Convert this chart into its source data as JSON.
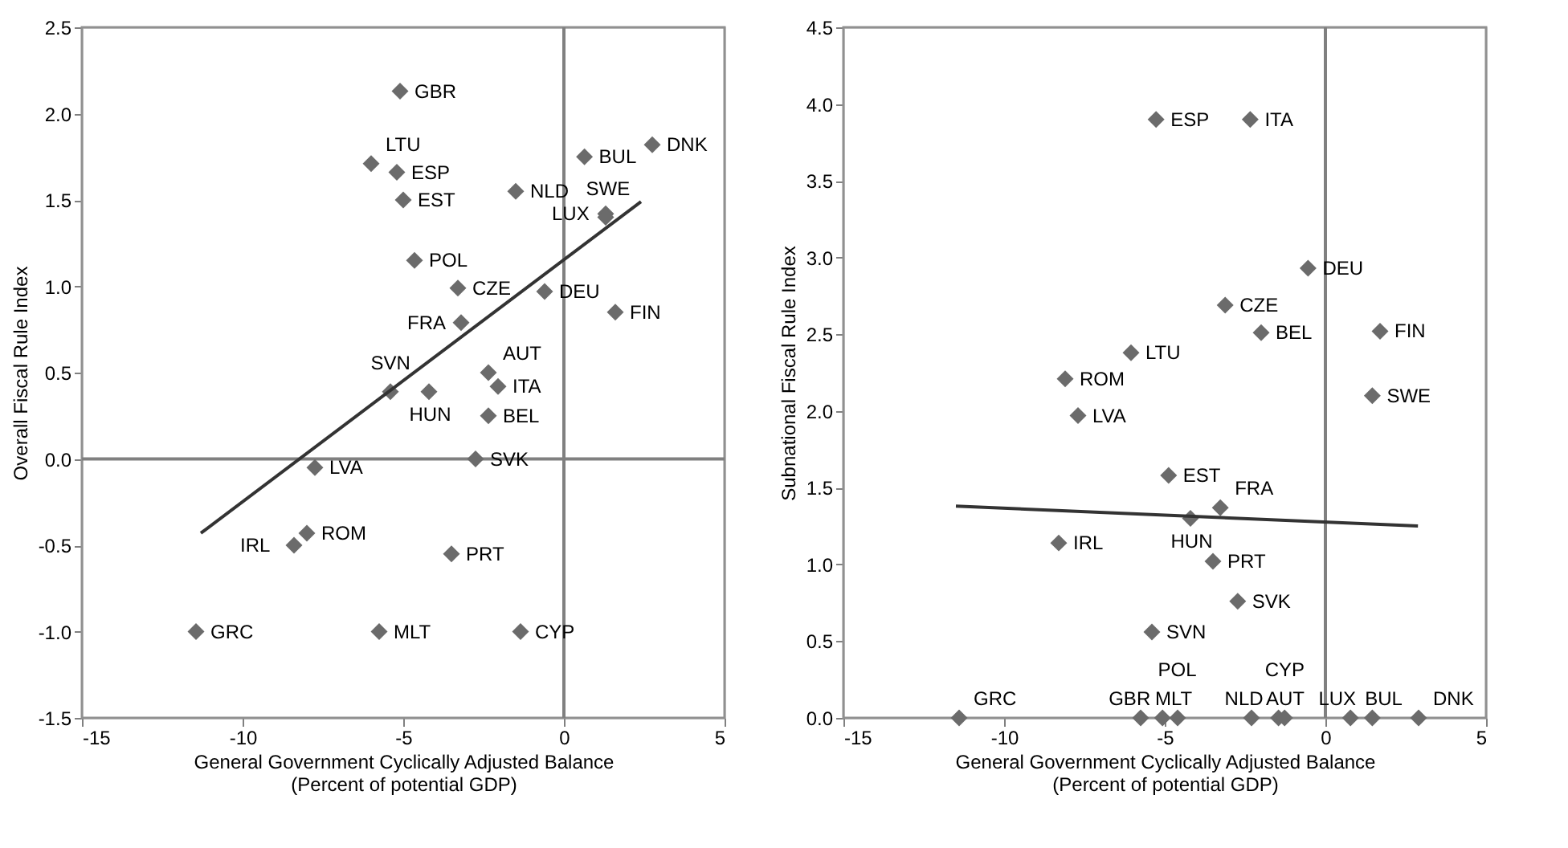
{
  "chart_data": [
    {
      "type": "scatter",
      "xlabel": "General Government Cyclically Adjusted Balance\n(Percent of potential GDP)",
      "ylabel": "Overall Fiscal Rule Index",
      "xlim": [
        -15,
        5
      ],
      "xticks": [
        -15,
        -10,
        -5,
        0,
        5
      ],
      "ylim": [
        -1.5,
        2.5
      ],
      "yticks": [
        {
          "value": -1.5,
          "label": "-1.5"
        },
        {
          "value": -1,
          "label": "-1.0"
        },
        {
          "value": -0.5,
          "label": "-0.5"
        },
        {
          "value": 0,
          "label": "0.0"
        },
        {
          "value": 0.5,
          "label": "0.5"
        },
        {
          "value": 1,
          "label": "1.0"
        },
        {
          "value": 1.5,
          "label": "1.5"
        },
        {
          "value": 2,
          "label": "2.0"
        },
        {
          "value": 2.5,
          "label": "2.5"
        }
      ],
      "grid": false,
      "ref_lines": [
        {
          "axis": "x",
          "value": 0,
          "color": "#808080"
        },
        {
          "axis": "y",
          "value": 0,
          "color": "#808080"
        }
      ],
      "series": [
        {
          "type": "scatter",
          "marker": "diamond",
          "color": "#6b6b6b",
          "x": [
            -5.1,
            -6.0,
            -5.2,
            -5.0,
            -1.5,
            0.64,
            2.75,
            1.3,
            1.3,
            -4.65,
            -3.3,
            -0.6,
            1.6,
            -3.2,
            -5.4,
            -4.2,
            -2.35,
            -2.05,
            -2.35,
            -2.75,
            -7.75,
            -8.0,
            -8.4,
            -3.5,
            -11.45,
            -5.75,
            -1.35
          ],
          "values": [
            2.13,
            1.71,
            1.66,
            1.5,
            1.55,
            1.75,
            1.82,
            1.42,
            1.4,
            1.15,
            0.99,
            0.97,
            0.85,
            0.79,
            0.39,
            0.39,
            0.5,
            0.42,
            0.25,
            0.0,
            -0.05,
            -0.43,
            -0.5,
            -0.55,
            -1.0,
            -1.0,
            -1.0
          ]
        },
        {
          "type": "line",
          "marker": "none",
          "color": "#333333",
          "x": [
            -11.3,
            2.4
          ],
          "values": [
            -0.43,
            1.49
          ]
        }
      ],
      "annotations": [
        {
          "text": "GBR",
          "x": -5.1,
          "y": 2.13
        },
        {
          "text": "LTU",
          "x": -6.0,
          "y": 1.71
        },
        {
          "text": "ESP",
          "x": -5.2,
          "y": 1.66
        },
        {
          "text": "EST",
          "x": -5.0,
          "y": 1.5
        },
        {
          "text": "NLD",
          "x": -1.5,
          "y": 1.55
        },
        {
          "text": "BUL",
          "x": 0.64,
          "y": 1.75
        },
        {
          "text": "DNK",
          "x": 2.75,
          "y": 1.82
        },
        {
          "text": "LUX",
          "x": 1.3,
          "y": 1.42
        },
        {
          "text": "SWE",
          "x": 1.3,
          "y": 1.4
        },
        {
          "text": "POL",
          "x": -4.65,
          "y": 1.15
        },
        {
          "text": "CZE",
          "x": -3.3,
          "y": 0.99
        },
        {
          "text": "DEU",
          "x": -0.6,
          "y": 0.97
        },
        {
          "text": "FIN",
          "x": 1.6,
          "y": 0.85
        },
        {
          "text": "FRA",
          "x": -3.2,
          "y": 0.79
        },
        {
          "text": "SVN",
          "x": -5.4,
          "y": 0.39
        },
        {
          "text": "HUN",
          "x": -4.2,
          "y": 0.39
        },
        {
          "text": "AUT",
          "x": -2.35,
          "y": 0.5
        },
        {
          "text": "ITA",
          "x": -2.05,
          "y": 0.42
        },
        {
          "text": "BEL",
          "x": -2.35,
          "y": 0.25
        },
        {
          "text": "SVK",
          "x": -2.75,
          "y": 0.0
        },
        {
          "text": "LVA",
          "x": -7.75,
          "y": -0.05
        },
        {
          "text": "ROM",
          "x": -8.0,
          "y": -0.43
        },
        {
          "text": "IRL",
          "x": -8.4,
          "y": -0.5
        },
        {
          "text": "PRT",
          "x": -3.5,
          "y": -0.55
        },
        {
          "text": "GRC",
          "x": -11.45,
          "y": -1.0
        },
        {
          "text": "MLT",
          "x": -5.75,
          "y": -1.0
        },
        {
          "text": "CYP",
          "x": -1.35,
          "y": -1.0
        }
      ]
    },
    {
      "type": "scatter",
      "xlabel": "General Government Cyclically Adjusted Balance\n(Percent of potential GDP)",
      "ylabel": "Subnational Fiscal Rule Index",
      "xlim": [
        -15,
        5
      ],
      "xticks": [
        -15,
        -10,
        -5,
        0,
        5
      ],
      "ylim": [
        0,
        4.5
      ],
      "yticks": [
        {
          "value": 0,
          "label": "0.0"
        },
        {
          "value": 0.5,
          "label": "0.5"
        },
        {
          "value": 1,
          "label": "1.0"
        },
        {
          "value": 1.5,
          "label": "1.5"
        },
        {
          "value": 2,
          "label": "2.0"
        },
        {
          "value": 2.5,
          "label": "2.5"
        },
        {
          "value": 3,
          "label": "3.0"
        },
        {
          "value": 3.5,
          "label": "3.5"
        },
        {
          "value": 4,
          "label": "4.0"
        },
        {
          "value": 4.5,
          "label": "4.5"
        }
      ],
      "grid": false,
      "ref_lines": [
        {
          "axis": "x",
          "value": 0,
          "color": "#808080"
        }
      ],
      "series": [
        {
          "type": "scatter",
          "marker": "diamond",
          "color": "#6b6b6b",
          "x": [
            -5.27,
            -2.34,
            -0.54,
            -3.12,
            -2.0,
            1.7,
            -6.05,
            -8.1,
            1.46,
            -7.7,
            -4.88,
            -4.2,
            -3.27,
            -8.3,
            -3.5,
            -2.73,
            -5.4,
            -11.4,
            -5.75,
            -5.07,
            -4.6,
            -2.3,
            -1.46,
            -1.27,
            0.78,
            1.46,
            2.9
          ],
          "values": [
            3.9,
            3.9,
            2.93,
            2.69,
            2.51,
            2.52,
            2.38,
            2.21,
            2.1,
            1.97,
            1.58,
            1.3,
            1.37,
            1.14,
            1.02,
            0.76,
            0.56,
            0,
            0,
            0,
            0,
            0,
            0,
            0,
            0,
            0,
            0
          ]
        },
        {
          "type": "line",
          "marker": "none",
          "color": "#333333",
          "x": [
            -11.5,
            2.88
          ],
          "values": [
            1.38,
            1.25
          ]
        }
      ],
      "annotations": [
        {
          "text": "ESP",
          "x": -5.27,
          "y": 3.9
        },
        {
          "text": "ITA",
          "x": -2.34,
          "y": 3.9
        },
        {
          "text": "DEU",
          "x": -0.54,
          "y": 2.93
        },
        {
          "text": "CZE",
          "x": -3.12,
          "y": 2.69
        },
        {
          "text": "BEL",
          "x": -2.0,
          "y": 2.51
        },
        {
          "text": "FIN",
          "x": 1.7,
          "y": 2.52
        },
        {
          "text": "LTU",
          "x": -6.05,
          "y": 2.38
        },
        {
          "text": "ROM",
          "x": -8.1,
          "y": 2.21
        },
        {
          "text": "SWE",
          "x": 1.46,
          "y": 2.1
        },
        {
          "text": "LVA",
          "x": -7.7,
          "y": 1.97
        },
        {
          "text": "EST",
          "x": -4.88,
          "y": 1.58
        },
        {
          "text": "HUN",
          "x": -4.2,
          "y": 1.3
        },
        {
          "text": "FRA",
          "x": -3.27,
          "y": 1.37
        },
        {
          "text": "IRL",
          "x": -8.3,
          "y": 1.14
        },
        {
          "text": "PRT",
          "x": -3.5,
          "y": 1.02
        },
        {
          "text": "SVK",
          "x": -2.73,
          "y": 0.76
        },
        {
          "text": "SVN",
          "x": -5.4,
          "y": 0.56
        },
        {
          "text": "GRC",
          "x": -11.4,
          "y": 0
        },
        {
          "text": "MLT",
          "x": -5.75,
          "y": 0
        },
        {
          "text": "GBR",
          "x": -5.07,
          "y": 0
        },
        {
          "text": "POL",
          "x": -4.6,
          "y": 0
        },
        {
          "text": "AUT",
          "x": -2.3,
          "y": 0
        },
        {
          "text": "NLD",
          "x": -1.46,
          "y": 0
        },
        {
          "text": "CYP",
          "x": -1.27,
          "y": 0
        },
        {
          "text": "BUL",
          "x": 0.78,
          "y": 0
        },
        {
          "text": "LUX",
          "x": 1.46,
          "y": 0
        },
        {
          "text": "DNK",
          "x": 2.9,
          "y": 0
        }
      ]
    }
  ]
}
